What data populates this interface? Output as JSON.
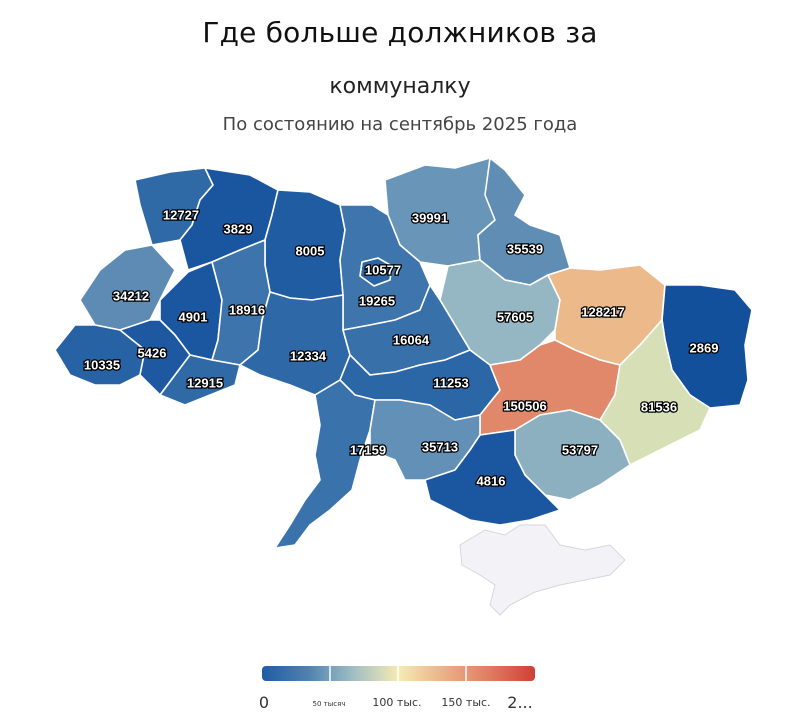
{
  "title": "Где больше должников за",
  "title_line2": "коммуналку",
  "subtitle": "По состоянию на сентябрь 2025 года",
  "regions": [
    {
      "name": "volyn",
      "value": "12727",
      "color": "#2f6aa6"
    },
    {
      "name": "rivne",
      "value": "3829",
      "color": "#1a56a0"
    },
    {
      "name": "zhytomyr",
      "value": "8005",
      "color": "#1f5ca2"
    },
    {
      "name": "kyiv-city",
      "value": "10577",
      "color": "#2a65a6"
    },
    {
      "name": "chernihiv",
      "value": "39991",
      "color": "#6895b8"
    },
    {
      "name": "sumy",
      "value": "35539",
      "color": "#5f8db4"
    },
    {
      "name": "lviv",
      "value": "34212",
      "color": "#5e8bb4"
    },
    {
      "name": "ternopil",
      "value": "4901",
      "color": "#1b57a0"
    },
    {
      "name": "khmelnytskyi",
      "value": "18916",
      "color": "#3d74ab"
    },
    {
      "name": "kyiv-oblast",
      "value": "19265",
      "color": "#3e75ac"
    },
    {
      "name": "poltava",
      "value": "57605",
      "color": "#95b7c3"
    },
    {
      "name": "kharkiv",
      "value": "128217",
      "color": "#ecb98a"
    },
    {
      "name": "luhansk",
      "value": "2869",
      "color": "#12509c"
    },
    {
      "name": "zakarpattia",
      "value": "10335",
      "color": "#2762a5"
    },
    {
      "name": "ivano-frankivsk",
      "value": "5426",
      "color": "#1d58a1"
    },
    {
      "name": "chernivtsi",
      "value": "12915",
      "color": "#2f6aa6"
    },
    {
      "name": "vinnytsia",
      "value": "12334",
      "color": "#2e68a6"
    },
    {
      "name": "cherkasy",
      "value": "16064",
      "color": "#3870aa"
    },
    {
      "name": "kirovohrad",
      "value": "11253",
      "color": "#2b66a6"
    },
    {
      "name": "dnipropetrovsk",
      "value": "150506",
      "color": "#e2886a"
    },
    {
      "name": "donetsk",
      "value": "81536",
      "color": "#d6dfb6"
    },
    {
      "name": "odesa",
      "value": "17159",
      "color": "#3a72ab"
    },
    {
      "name": "mykolaiv",
      "value": "35713",
      "color": "#6390b6"
    },
    {
      "name": "zaporizhzhia",
      "value": "53797",
      "color": "#8db0c1"
    },
    {
      "name": "kherson",
      "value": "4816",
      "color": "#1b57a0"
    },
    {
      "name": "crimea",
      "value": "",
      "color": "#f3f3f7"
    }
  ],
  "legend": {
    "ticks": [
      "0",
      "50 тысяч",
      "100 тыс.",
      "150 тыс.",
      "2..."
    ],
    "colors": [
      "#1f5ca2",
      "#4f82b0",
      "#9ebdc4",
      "#f5ebb3",
      "#eab085",
      "#e07e62",
      "#cf3f34"
    ]
  }
}
